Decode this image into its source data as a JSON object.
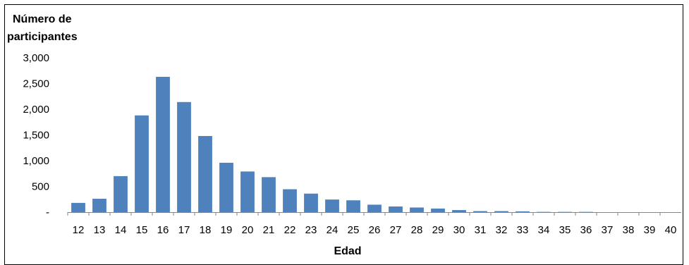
{
  "chart_data": {
    "type": "bar",
    "ylabel_lines": [
      "Número de",
      "participantes"
    ],
    "xlabel": "Edad",
    "categories": [
      "12",
      "13",
      "14",
      "15",
      "16",
      "17",
      "18",
      "19",
      "20",
      "21",
      "22",
      "23",
      "24",
      "25",
      "26",
      "27",
      "28",
      "29",
      "30",
      "31",
      "32",
      "33",
      "34",
      "35",
      "36",
      "37",
      "38",
      "39",
      "40"
    ],
    "values": [
      180,
      260,
      700,
      1880,
      2630,
      2140,
      1480,
      960,
      790,
      680,
      445,
      360,
      245,
      230,
      145,
      110,
      90,
      70,
      40,
      20,
      20,
      15,
      5,
      5,
      5,
      0,
      0,
      0,
      0
    ],
    "ylim": [
      0,
      3000
    ],
    "yticks": [
      0,
      500,
      1000,
      1500,
      2000,
      2500,
      3000
    ],
    "ytick_labels": [
      "-",
      "500",
      "1,000",
      "1,500",
      "2,000",
      "2,500",
      "3,000"
    ],
    "bar_color": "#4F81BD",
    "grid": false,
    "legend": "none"
  }
}
